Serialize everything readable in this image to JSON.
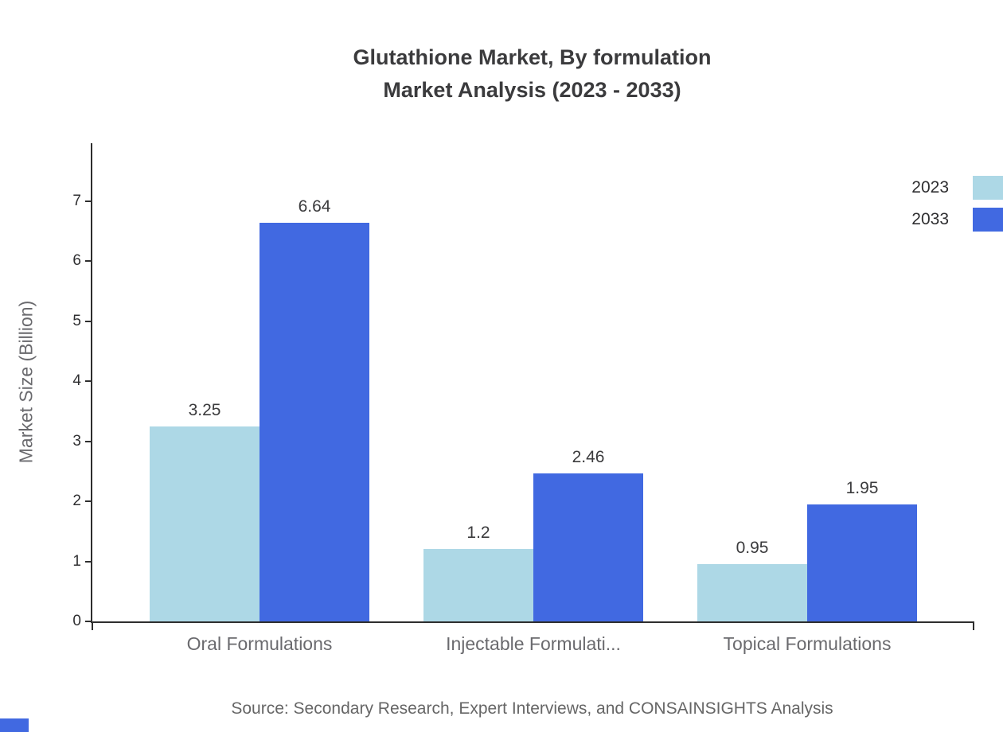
{
  "title": {
    "line1": "Glutathione Market, By formulation",
    "line2": "Market Analysis (2023 - 2033)"
  },
  "source_note": "Source: Secondary Research, Expert Interviews, and CONSAINSIGHTS Analysis",
  "chart_data": {
    "type": "bar",
    "title": "Glutathione Market, By formulation Market Analysis (2023 - 2033)",
    "categories": [
      "Oral Formulations",
      "Injectable Formulati...",
      "Topical Formulations"
    ],
    "series": [
      {
        "name": "2023",
        "color": "#ADD8E6",
        "values": [
          3.25,
          1.2,
          0.95
        ]
      },
      {
        "name": "2033",
        "color": "#4169E1",
        "values": [
          6.64,
          2.46,
          1.95
        ]
      }
    ],
    "xlabel": "",
    "ylabel": "Market Size (Billion)",
    "ylim": [
      0,
      8
    ],
    "yticks": [
      0,
      1,
      2,
      3,
      4,
      5,
      6,
      7
    ],
    "legend": [
      "2023",
      "2033"
    ],
    "legend_position": "top-right",
    "grid": false
  },
  "colors": {
    "series_2023": "#ADD8E6",
    "series_2033": "#4169E1",
    "axis": "#2e2e2e",
    "label_gray": "#6a6a6e",
    "text_dark": "#3b3b3d",
    "source_gray": "#666666"
  }
}
